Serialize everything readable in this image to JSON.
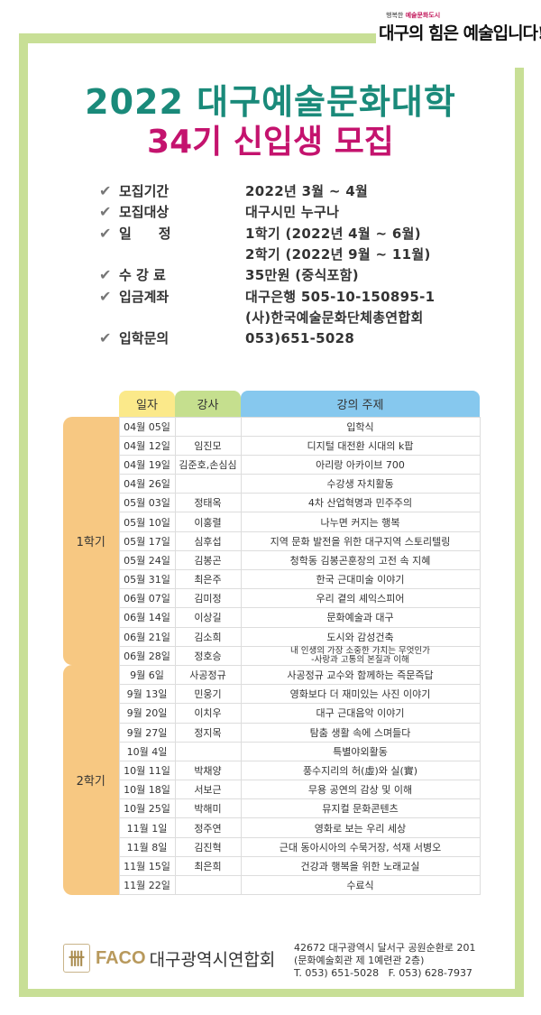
{
  "colors": {
    "frame": "#c8df96",
    "title_green": "#1a8a7a",
    "title_pink": "#c4136e",
    "semester_bg": "#f7c882",
    "header_date": "#fbe98a",
    "header_lecturer": "#c5df8e",
    "header_topic": "#86c8ee",
    "faco_gold": "#b8995c"
  },
  "slogan": {
    "small_prefix": "행복한",
    "small_highlight": "예술문화도시",
    "main": "대구의 힘은 예술입니다!"
  },
  "title": {
    "line1": "2022 대구예술문화대학",
    "line2": "34기 신입생 모집"
  },
  "info": [
    {
      "label": "모집기간",
      "value": "2022년 3월 ~ 4월"
    },
    {
      "label": "모집대상",
      "value": "대구시민 누구나"
    },
    {
      "label": "일　　정",
      "value": "1학기 (2022년 4월 ~ 6월)"
    },
    {
      "label": "",
      "value": "2학기 (2022년 9월 ~ 11월)"
    },
    {
      "label": "수 강 료",
      "value": "35만원 (중식포함)"
    },
    {
      "label": "입금계좌",
      "value": "대구은행 505-10-150895-1"
    },
    {
      "label": "",
      "value": "(사)한국예술문화단체총연합회"
    },
    {
      "label": "입학문의",
      "value": "053)651-5028"
    }
  ],
  "check_icon": "checkmark",
  "table": {
    "headers": {
      "date": "일자",
      "lecturer": "강사",
      "topic": "강의 주제"
    },
    "semesters": [
      {
        "label": "1학기",
        "rows": [
          {
            "date": "04월 05일",
            "lecturer": "",
            "topic": "입학식"
          },
          {
            "date": "04월 12일",
            "lecturer": "임진모",
            "topic": "디지털 대전환 시대의 k팝"
          },
          {
            "date": "04월 19일",
            "lecturer": "김준호,손심심",
            "topic": "아리랑 아카이브 700"
          },
          {
            "date": "04월 26일",
            "lecturer": "",
            "topic": "수강생 자치활동"
          },
          {
            "date": "05월 03일",
            "lecturer": "정태옥",
            "topic": "4차 산업혁명과 민주주의"
          },
          {
            "date": "05월 10일",
            "lecturer": "이홍렬",
            "topic": "나누면 커지는 행복"
          },
          {
            "date": "05월 17일",
            "lecturer": "심후섭",
            "topic": "지역 문화 발전을 위한 대구지역 스토리텔링"
          },
          {
            "date": "05월 24일",
            "lecturer": "김봉곤",
            "topic": "청학동 김봉곤훈장의 고전 속 지혜"
          },
          {
            "date": "05월 31일",
            "lecturer": "최은주",
            "topic": "한국 근대미술 이야기"
          },
          {
            "date": "06월 07일",
            "lecturer": "김미정",
            "topic": "우리 곁의 셰익스피어"
          },
          {
            "date": "06월 14일",
            "lecturer": "이상길",
            "topic": "문화예술과 대구"
          },
          {
            "date": "06월 21일",
            "lecturer": "김소희",
            "topic": "도시와 감성건축"
          },
          {
            "date": "06월 28일",
            "lecturer": "정호승",
            "topic": "내 인생의 가장 소중한 가치는 무엇인가",
            "topic_sub": "-사랑과 고통의 본질과 이해"
          }
        ]
      },
      {
        "label": "2학기",
        "rows": [
          {
            "date": "9월 6일",
            "lecturer": "사공정규",
            "topic": "사공정규 교수와 함께하는 즉문즉답"
          },
          {
            "date": "9월 13일",
            "lecturer": "민웅기",
            "topic": "영화보다 더 재미있는 사진 이야기"
          },
          {
            "date": "9월 20일",
            "lecturer": "이치우",
            "topic": "대구 근대음악 이야기"
          },
          {
            "date": "9월 27일",
            "lecturer": "정지목",
            "topic": "탐춤 생활 속에 스며들다"
          },
          {
            "date": "10월 4일",
            "lecturer": "",
            "topic": "특별야외활동"
          },
          {
            "date": "10월 11일",
            "lecturer": "박채양",
            "topic": "풍수지리의 허(虛)와 실(實)"
          },
          {
            "date": "10월 18일",
            "lecturer": "서보근",
            "topic": "무용 공연의 감상 및 이해"
          },
          {
            "date": "10월 25일",
            "lecturer": "박해미",
            "topic": "뮤지컬 문화콘텐츠"
          },
          {
            "date": "11월 1일",
            "lecturer": "정주연",
            "topic": "영화로 보는 우리 세상"
          },
          {
            "date": "11월 8일",
            "lecturer": "김진혁",
            "topic": "근대 동아시아의 수묵거장, 석재 서병오"
          },
          {
            "date": "11월 15일",
            "lecturer": "최은희",
            "topic": "건강과 행복을 위한 노래교실"
          },
          {
            "date": "11월 22일",
            "lecturer": "",
            "topic": "수료식"
          }
        ]
      }
    ]
  },
  "footer": {
    "logo_text": "FACO",
    "org_name": "대구광역시연합회",
    "address_line1": "42672 대구광역시 달서구 공원순환로 201",
    "address_line2": "(문화예술회관 제 1예련관 2층)",
    "phone": "T. 053) 651-5028   F. 053) 628-7937"
  }
}
